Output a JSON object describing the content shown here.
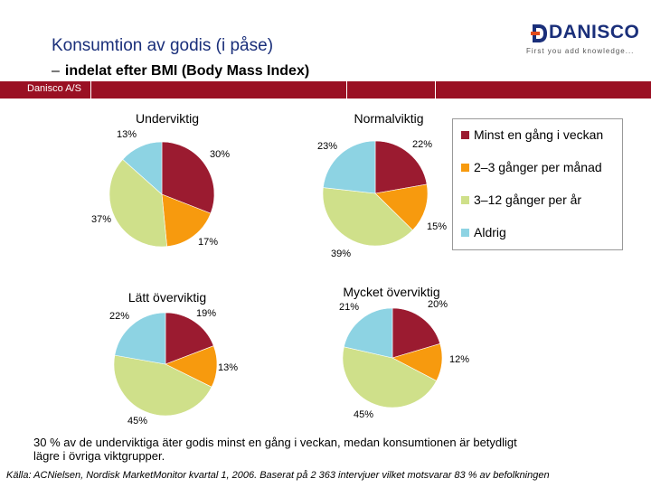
{
  "header": {
    "title": "Konsumtion av godis (i påse)",
    "subtitle_dash": "–",
    "subtitle": "indelat efter BMI (Body Mass Index)",
    "band_text": "Danisco A/S"
  },
  "logo": {
    "word": "DANISCO",
    "tagline": "First you add knowledge..."
  },
  "colors": {
    "maroon": "#9b1b30",
    "orange": "#f79a0e",
    "lightgreen": "#cfe08a",
    "lightblue": "#8dd3e3",
    "band": "#9a1023",
    "brand": "#1a2f7a"
  },
  "legend": [
    {
      "label": "Minst en gång i veckan",
      "color": "#9b1b30"
    },
    {
      "label": "2–3 gånger per månad",
      "color": "#f79a0e"
    },
    {
      "label": "3–12 gånger per år",
      "color": "#cfe08a"
    },
    {
      "label": "Aldrig",
      "color": "#8dd3e3"
    }
  ],
  "chart_data": [
    {
      "type": "pie",
      "title": "Underviktig",
      "categories": [
        "Minst en gång i veckan",
        "2–3 gånger per månad",
        "3–12 gånger per år",
        "Aldrig"
      ],
      "values": [
        30,
        17,
        37,
        13
      ],
      "labels": [
        "30%",
        "17%",
        "37%",
        "13%"
      ]
    },
    {
      "type": "pie",
      "title": "Normalviktig",
      "categories": [
        "Minst en gång i veckan",
        "2–3 gånger per månad",
        "3–12 gånger per år",
        "Aldrig"
      ],
      "values": [
        22,
        15,
        39,
        23
      ],
      "labels": [
        "22%",
        "15%",
        "39%",
        "23%"
      ]
    },
    {
      "type": "pie",
      "title": "Lätt överviktig",
      "categories": [
        "Minst en gång i veckan",
        "2–3 gånger per månad",
        "3–12 gånger per år",
        "Aldrig"
      ],
      "values": [
        19,
        13,
        45,
        22
      ],
      "labels": [
        "19%",
        "13%",
        "45%",
        "22%"
      ]
    },
    {
      "type": "pie",
      "title": "Mycket överviktig",
      "categories": [
        "Minst en gång i veckan",
        "2–3 gånger per månad",
        "3–12 gånger per år",
        "Aldrig"
      ],
      "values": [
        20,
        12,
        45,
        21
      ],
      "labels": [
        "20%",
        "12%",
        "45%",
        "21%"
      ]
    }
  ],
  "note": "30 % av de underviktiga äter godis minst en gång i veckan, medan konsumtionen är betydligt lägre i övriga viktgrupper.",
  "source": "Källa: ACNielsen, Nordisk MarketMonitor kvartal 1, 2006. Baserat på 2 363 intervjuer vilket motsvarar 83 % av befolkningen"
}
